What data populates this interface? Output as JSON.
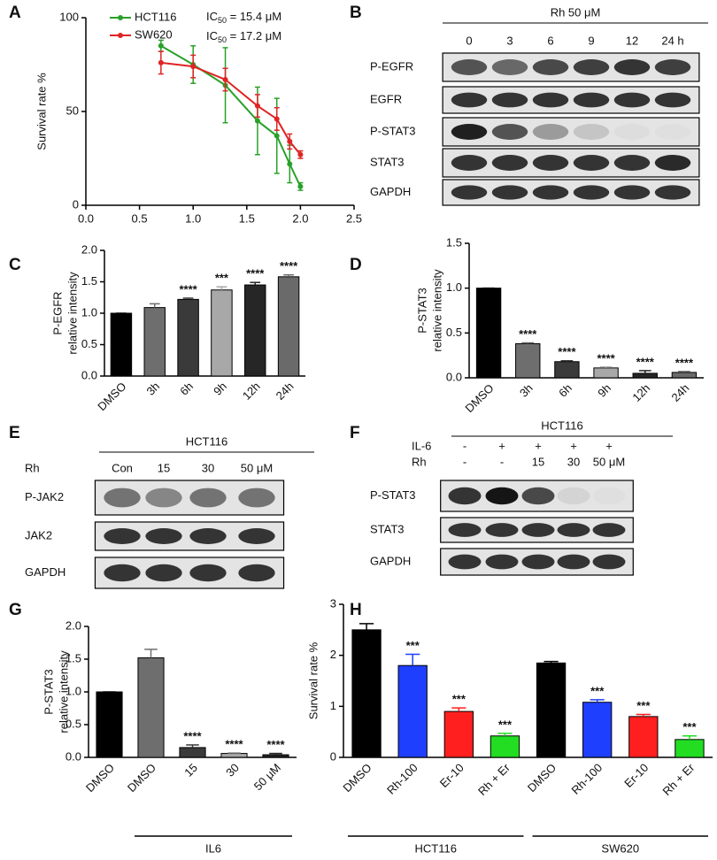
{
  "chart_data": [
    {
      "type": "line",
      "panel": "A",
      "ylabel": [
        "Survival rate %"
      ],
      "xlim": [
        0,
        2.5
      ],
      "xticks": [
        {
          "value": 0,
          "label": "0.0"
        },
        0.5,
        {
          "value": 1,
          "label": "1.0"
        },
        1.5,
        {
          "value": 2,
          "label": "2.0"
        },
        2.5
      ],
      "ylim": [
        0,
        100
      ],
      "yticks": [
        0,
        50,
        100
      ],
      "x": [
        0.7,
        1.0,
        1.3,
        1.6,
        1.78,
        1.9,
        2.0
      ],
      "series": [
        {
          "name": "HCT116",
          "color": "#2aa02a",
          "values": [
            85,
            75,
            64,
            45,
            37,
            22,
            10
          ],
          "errors": [
            3,
            10,
            20,
            18,
            20,
            10,
            2
          ]
        },
        {
          "name": "SW620",
          "color": "#e02424",
          "values": [
            76,
            74,
            67,
            53,
            46,
            34,
            27
          ],
          "errors": [
            6,
            6,
            6,
            6,
            6,
            4,
            2
          ]
        }
      ],
      "annotations": [
        [
          "IC",
          "50",
          " = 15.4 μM"
        ],
        [
          "IC",
          "50",
          " = 17.2 μM"
        ]
      ]
    },
    {
      "type": "bar",
      "panel": "C",
      "ylabel": [
        "P-EGFR",
        "relative intensity"
      ],
      "categories": [
        "DMSO",
        "3h",
        "6h",
        "9h",
        "12h",
        "24h"
      ],
      "values": [
        1.0,
        1.09,
        1.22,
        1.37,
        1.45,
        1.58
      ],
      "errors": [
        0,
        0.06,
        0.02,
        0.05,
        0.04,
        0.03
      ],
      "colors": [
        "#000000",
        "#6e6e6e",
        "#3a3a3a",
        "#a8a8a8",
        "#262626",
        "#6a6a6a"
      ],
      "significance": [
        null,
        null,
        "****",
        "***",
        "****",
        "****"
      ],
      "ylim": [
        0,
        2
      ],
      "yticks": [
        {
          "value": 0,
          "label": "0.0"
        },
        0.5,
        {
          "value": 1,
          "label": "1.0"
        },
        1.5,
        {
          "value": 2,
          "label": "2.0"
        }
      ]
    },
    {
      "type": "bar",
      "panel": "D",
      "ylabel": [
        "P-STAT3",
        "relative intensity"
      ],
      "categories": [
        "DMSO",
        "3h",
        "6h",
        "9h",
        "12h",
        "24h"
      ],
      "values": [
        1.0,
        0.38,
        0.18,
        0.11,
        0.05,
        0.06
      ],
      "errors": [
        0,
        0.01,
        0.01,
        0.01,
        0.03,
        0.01
      ],
      "colors": [
        "#000000",
        "#6e6e6e",
        "#3a3a3a",
        "#a8a8a8",
        "#262626",
        "#6a6a6a"
      ],
      "significance": [
        null,
        "****",
        "****",
        "****",
        "****",
        "****"
      ],
      "ylim": [
        0,
        1.5
      ],
      "yticks": [
        {
          "value": 0,
          "label": "0.0"
        },
        0.5,
        {
          "value": 1,
          "label": "1.0"
        },
        1.5
      ]
    },
    {
      "type": "bar",
      "panel": "G",
      "ylabel": [
        "P-STAT3",
        "relative intensity"
      ],
      "categories": [
        "DMSO",
        "DMSO",
        "15",
        "30",
        "50 μM"
      ],
      "values": [
        1.0,
        1.52,
        0.15,
        0.06,
        0.04
      ],
      "errors": [
        0,
        0.13,
        0.04,
        0.01,
        0.02
      ],
      "colors": [
        "#000000",
        "#6e6e6e",
        "#3a3a3a",
        "#a8a8a8",
        "#262626"
      ],
      "significance": [
        null,
        null,
        "****",
        "****",
        "****"
      ],
      "groups": [
        {
          "label": "IL6",
          "from": 1,
          "to": 4
        }
      ],
      "ylim": [
        0,
        2
      ],
      "yticks": [
        {
          "value": 0,
          "label": "0.0"
        },
        0.5,
        {
          "value": 1,
          "label": "1.0"
        },
        1.5,
        {
          "value": 2,
          "label": "2.0"
        }
      ]
    },
    {
      "type": "bar",
      "panel": "H",
      "ylabel": [
        "Survival rate %"
      ],
      "categories": [
        "DMSO",
        "Rh-100",
        "Er-10",
        "Rh + Er",
        "DMSO",
        "Rh-100",
        "Er-10",
        "Rh + Er"
      ],
      "values": [
        2.5,
        1.8,
        0.9,
        0.42,
        1.85,
        1.08,
        0.8,
        0.35
      ],
      "errors": [
        0.12,
        0.22,
        0.07,
        0.05,
        0.03,
        0.05,
        0.04,
        0.07
      ],
      "colors": [
        "#000000",
        "#1f3fff",
        "#ff1f1f",
        "#22dd22",
        "#000000",
        "#1f3fff",
        "#ff1f1f",
        "#22dd22"
      ],
      "significance": [
        null,
        "***",
        "***",
        "***",
        null,
        "***",
        "***",
        "***"
      ],
      "groups": [
        {
          "label": "HCT116",
          "from": 0,
          "to": 3
        },
        {
          "label": "SW620",
          "from": 4,
          "to": 7
        }
      ],
      "ylim": [
        0,
        3
      ],
      "yticks": [
        0,
        1,
        2,
        3
      ]
    }
  ],
  "blots": [
    {
      "panel": "B",
      "group": "Rh 50 μM",
      "treatments": [
        {
          "values": [
            "0",
            "3",
            "6",
            "9",
            "12",
            "24 h"
          ]
        }
      ],
      "rows": [
        "P-EGFR",
        "EGFR",
        "P-STAT3",
        "STAT3",
        "GAPDH"
      ]
    },
    {
      "panel": "E",
      "group": "HCT116",
      "treatments": [
        {
          "label": "Rh",
          "values": [
            "Con",
            "15",
            "30",
            "50 μM"
          ]
        }
      ],
      "rows": [
        "P-JAK2",
        "JAK2",
        "GAPDH"
      ]
    },
    {
      "panel": "F",
      "group": "HCT116",
      "treatments": [
        {
          "label": "IL-6",
          "values": [
            "-",
            "+",
            "+",
            "+",
            "+"
          ]
        },
        {
          "label": "Rh",
          "values": [
            "-",
            "-",
            "15",
            "30",
            "50 μM"
          ]
        }
      ],
      "rows": [
        "P-STAT3",
        "STAT3",
        "GAPDH"
      ]
    }
  ]
}
